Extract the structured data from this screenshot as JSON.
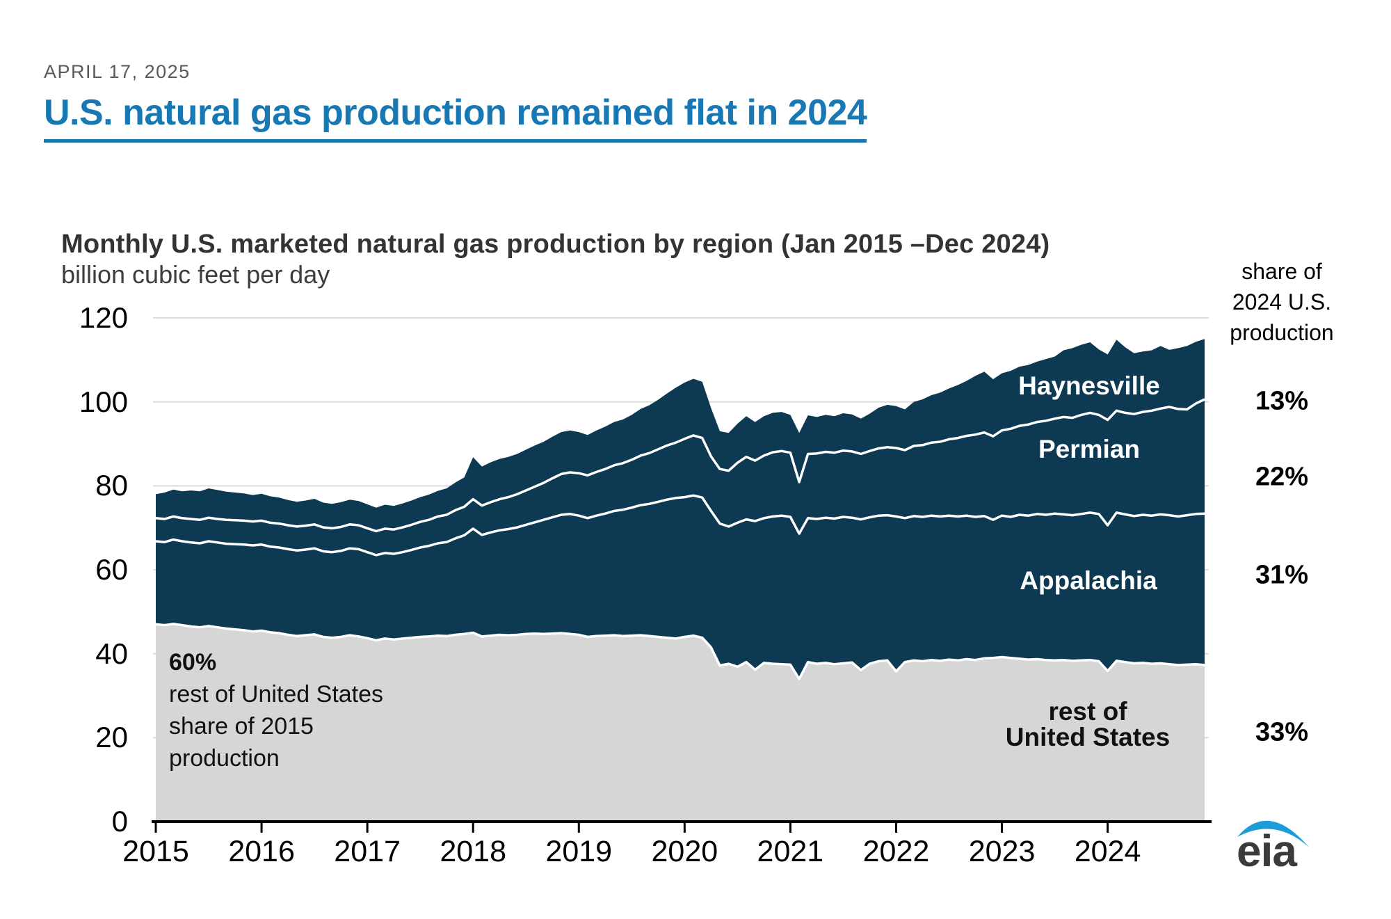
{
  "header": {
    "date": "APRIL 17, 2025",
    "title": "U.S. natural gas production remained flat in 2024"
  },
  "chart": {
    "heading": "Monthly U.S. marketed natural gas production by region (Jan 2015 –Dec 2024)",
    "unit_label": "billion cubic feet per day",
    "share_header": "share of\n2024 U.S.\nproduction"
  },
  "labels": {
    "haynesville": "Haynesville",
    "permian": "Permian",
    "appalachia": "Appalachia",
    "rest": "rest of\nUnited States"
  },
  "shares": {
    "haynesville": "13%",
    "permian": "22%",
    "appalachia": "31%",
    "rest": "33%"
  },
  "annotation": {
    "pct": "60%",
    "text": "rest of United States\nshare of 2015\nproduction"
  },
  "logo": {
    "text": "eia"
  },
  "chart_data": {
    "type": "area",
    "stacked": true,
    "title": "Monthly U.S. marketed natural gas production by region (Jan 2015 –Dec 2024)",
    "ylabel": "billion cubic feet per day",
    "x_range": [
      "Jan 2015",
      "Dec 2024"
    ],
    "x_tick_years": [
      2015,
      2016,
      2017,
      2018,
      2019,
      2020,
      2021,
      2022,
      2023,
      2024
    ],
    "y_ticks": [
      0,
      20,
      40,
      60,
      80,
      100,
      120
    ],
    "ylim": [
      0,
      120
    ],
    "grid": "horizontal",
    "legend_position": "inside-area-labels",
    "colors": {
      "shale_regions": "#0d3a52",
      "rest": "#d6d6d6",
      "divider": "#ffffff",
      "gridline": "#dcdcdc"
    },
    "series": [
      {
        "name": "rest of United States",
        "share_of_2024": "33%",
        "share_of_2015": "60%",
        "color": "#d6d6d6",
        "values": [
          47.0,
          46.8,
          47.1,
          46.8,
          46.5,
          46.3,
          46.6,
          46.3,
          46.0,
          45.8,
          45.6,
          45.3,
          45.5,
          45.1,
          44.9,
          44.5,
          44.2,
          44.4,
          44.6,
          44.0,
          43.8,
          44.0,
          44.4,
          44.1,
          43.7,
          43.2,
          43.6,
          43.4,
          43.6,
          43.8,
          44.0,
          44.1,
          44.3,
          44.2,
          44.5,
          44.7,
          45.0,
          44.1,
          44.3,
          44.5,
          44.4,
          44.5,
          44.7,
          44.8,
          44.7,
          44.8,
          44.9,
          44.7,
          44.5,
          44.0,
          44.2,
          44.3,
          44.4,
          44.2,
          44.3,
          44.4,
          44.2,
          44.0,
          43.8,
          43.6,
          44.0,
          44.3,
          43.8,
          41.5,
          37.2,
          37.6,
          36.9,
          38.0,
          36.2,
          37.8,
          37.6,
          37.5,
          37.4,
          34.0,
          38.0,
          37.6,
          37.8,
          37.5,
          37.7,
          37.9,
          36.1,
          37.6,
          38.2,
          38.4,
          35.8,
          38.0,
          38.4,
          38.2,
          38.5,
          38.3,
          38.6,
          38.4,
          38.7,
          38.5,
          38.9,
          39.0,
          39.2,
          39.0,
          38.8,
          38.6,
          38.7,
          38.5,
          38.4,
          38.5,
          38.3,
          38.4,
          38.5,
          38.2,
          35.9,
          38.3,
          38.0,
          37.7,
          37.8,
          37.6,
          37.7,
          37.5,
          37.3,
          37.4,
          37.5,
          37.3
        ]
      },
      {
        "name": "Appalachia",
        "share_of_2024": "31%",
        "color": "#0d3a52",
        "values": [
          19.8,
          19.8,
          20.1,
          20.0,
          20.0,
          20.0,
          20.2,
          20.2,
          20.2,
          20.3,
          20.4,
          20.5,
          20.5,
          20.4,
          20.4,
          20.4,
          20.4,
          20.4,
          20.5,
          20.4,
          20.4,
          20.5,
          20.7,
          20.8,
          20.5,
          20.3,
          20.4,
          20.4,
          20.6,
          20.9,
          21.3,
          21.6,
          22.0,
          22.4,
          23.0,
          23.5,
          24.8,
          24.2,
          24.6,
          24.9,
          25.3,
          25.6,
          26.0,
          26.5,
          27.2,
          27.7,
          28.2,
          28.6,
          28.4,
          28.3,
          28.7,
          29.1,
          29.6,
          30.1,
          30.5,
          31.0,
          31.5,
          32.2,
          32.9,
          33.5,
          33.3,
          33.4,
          33.4,
          32.5,
          33.8,
          32.7,
          34.3,
          34.0,
          35.4,
          34.5,
          35.1,
          35.4,
          35.2,
          34.6,
          34.3,
          34.5,
          34.6,
          34.7,
          34.9,
          34.5,
          35.9,
          34.9,
          34.7,
          34.6,
          36.9,
          34.3,
          34.4,
          34.4,
          34.4,
          34.4,
          34.3,
          34.3,
          34.2,
          34.1,
          33.9,
          32.9,
          33.7,
          33.6,
          34.3,
          34.3,
          34.6,
          34.6,
          35.0,
          34.7,
          34.7,
          34.9,
          35.1,
          35.1,
          34.7,
          35.3,
          35.2,
          35.1,
          35.3,
          35.3,
          35.5,
          35.5,
          35.4,
          35.6,
          35.8,
          36.1
        ]
      },
      {
        "name": "Permian",
        "share_of_2024": "22%",
        "color": "#0d3a52",
        "values": [
          5.5,
          5.5,
          5.5,
          5.5,
          5.6,
          5.6,
          5.6,
          5.6,
          5.7,
          5.7,
          5.7,
          5.7,
          5.7,
          5.7,
          5.7,
          5.7,
          5.7,
          5.7,
          5.7,
          5.7,
          5.7,
          5.7,
          5.7,
          5.7,
          5.7,
          5.7,
          5.8,
          5.8,
          5.9,
          6.0,
          6.1,
          6.2,
          6.4,
          6.5,
          6.7,
          6.8,
          7.0,
          7.0,
          7.2,
          7.4,
          7.6,
          7.9,
          8.2,
          8.5,
          8.8,
          9.3,
          9.7,
          9.9,
          10.1,
          10.2,
          10.4,
          10.6,
          10.9,
          11.1,
          11.4,
          11.8,
          12.1,
          12.5,
          12.9,
          13.2,
          13.9,
          14.3,
          14.2,
          13.0,
          13.0,
          13.3,
          14.3,
          14.9,
          14.4,
          14.9,
          15.3,
          15.4,
          15.3,
          12.3,
          15.3,
          15.6,
          15.7,
          15.7,
          15.8,
          15.8,
          15.6,
          15.8,
          16.0,
          16.2,
          16.3,
          16.2,
          16.7,
          17.1,
          17.4,
          17.8,
          18.2,
          18.7,
          19.0,
          19.6,
          19.9,
          19.9,
          20.3,
          21.0,
          21.2,
          21.7,
          21.9,
          22.4,
          22.6,
          23.2,
          23.2,
          23.6,
          23.8,
          23.6,
          25.1,
          24.3,
          24.2,
          24.3,
          24.5,
          25.0,
          25.2,
          25.8,
          25.6,
          25.2,
          26.3,
          27.2
        ]
      },
      {
        "name": "Haynesville",
        "share_of_2024": "13%",
        "color": "#0d3a52",
        "values": [
          5.7,
          6.3,
          6.4,
          6.4,
          6.8,
          6.8,
          7.0,
          6.9,
          6.7,
          6.6,
          6.5,
          6.3,
          6.4,
          6.3,
          6.2,
          6.0,
          5.9,
          6.0,
          6.1,
          5.9,
          5.8,
          5.9,
          5.9,
          5.8,
          5.7,
          5.6,
          5.7,
          5.6,
          5.7,
          5.8,
          5.9,
          6.0,
          6.1,
          6.3,
          6.6,
          7.0,
          10.0,
          9.3,
          9.5,
          9.6,
          9.6,
          9.6,
          9.7,
          9.8,
          9.8,
          9.9,
          10.0,
          10.0,
          9.8,
          9.6,
          9.9,
          10.1,
          10.3,
          10.4,
          10.7,
          11.1,
          11.4,
          11.8,
          12.4,
          13.1,
          13.4,
          13.5,
          13.4,
          11.5,
          9.0,
          9.0,
          9.3,
          9.7,
          9.2,
          9.4,
          9.4,
          9.3,
          9.0,
          11.7,
          9.2,
          8.7,
          8.8,
          8.7,
          8.9,
          8.8,
          8.4,
          8.9,
          9.7,
          10.1,
          10.0,
          9.7,
          10.5,
          10.9,
          11.3,
          11.7,
          12.1,
          12.6,
          13.1,
          14.0,
          14.5,
          13.6,
          13.6,
          13.8,
          14.1,
          14.2,
          14.4,
          14.7,
          14.8,
          15.9,
          16.6,
          16.7,
          16.8,
          15.6,
          15.6,
          16.9,
          15.6,
          14.5,
          14.4,
          14.4,
          14.9,
          13.6,
          14.5,
          15.1,
          14.7,
          14.4
        ]
      }
    ]
  }
}
